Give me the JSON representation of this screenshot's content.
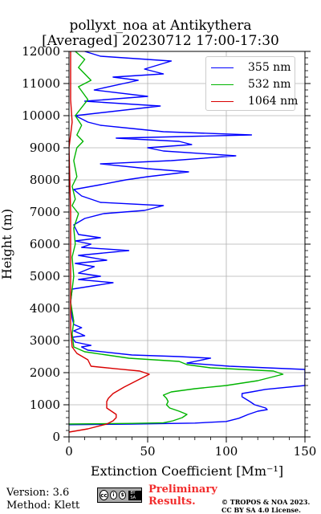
{
  "chart_data": {
    "type": "line",
    "title": "pollyxt_noa at Antikythera",
    "subtitle": "[Averaged] 20230712 17:00-17:30",
    "xlabel": "Extinction Coefficient [Mm⁻¹]",
    "ylabel": "Height (m)",
    "xlim": [
      0,
      150
    ],
    "ylim": [
      0,
      12000
    ],
    "xticks": [
      0,
      50,
      100,
      150
    ],
    "yticks": [
      0,
      1000,
      2000,
      3000,
      4000,
      5000,
      6000,
      7000,
      8000,
      9000,
      10000,
      11000,
      12000
    ],
    "grid": true,
    "legend_position": "top-right",
    "series": [
      {
        "name": "355 nm",
        "color": "#0000ff",
        "points": [
          [
            0,
            380
          ],
          [
            40,
            400
          ],
          [
            80,
            430
          ],
          [
            100,
            480
          ],
          [
            108,
            580
          ],
          [
            114,
            700
          ],
          [
            120,
            800
          ],
          [
            126,
            850
          ],
          [
            125,
            900
          ],
          [
            118,
            1000
          ],
          [
            115,
            1100
          ],
          [
            110,
            1250
          ],
          [
            110,
            1350
          ],
          [
            116,
            1400
          ],
          [
            125,
            1480
          ],
          [
            150,
            1600
          ],
          [
            150,
            2100
          ],
          [
            102,
            2200
          ],
          [
            75,
            2300
          ],
          [
            80,
            2350
          ],
          [
            90,
            2450
          ],
          [
            70,
            2500
          ],
          [
            40,
            2550
          ],
          [
            12,
            2700
          ],
          [
            8,
            2800
          ],
          [
            14,
            2850
          ],
          [
            4,
            2950
          ],
          [
            2,
            3100
          ],
          [
            10,
            3150
          ],
          [
            3,
            3300
          ],
          [
            8,
            3400
          ],
          [
            3,
            3500
          ],
          [
            2,
            3700
          ],
          [
            1,
            4200
          ],
          [
            2,
            4600
          ],
          [
            15,
            4700
          ],
          [
            28,
            4800
          ],
          [
            6,
            4900
          ],
          [
            20,
            5000
          ],
          [
            6,
            5100
          ],
          [
            16,
            5300
          ],
          [
            4,
            5400
          ],
          [
            24,
            5500
          ],
          [
            6,
            5650
          ],
          [
            38,
            5800
          ],
          [
            8,
            5900
          ],
          [
            14,
            6000
          ],
          [
            4,
            6100
          ],
          [
            20,
            6200
          ],
          [
            6,
            6300
          ],
          [
            3,
            6600
          ],
          [
            10,
            6800
          ],
          [
            22,
            6950
          ],
          [
            48,
            7050
          ],
          [
            60,
            7200
          ],
          [
            20,
            7300
          ],
          [
            8,
            7500
          ],
          [
            3,
            7700
          ],
          [
            20,
            7850
          ],
          [
            36,
            8000
          ],
          [
            50,
            8100
          ],
          [
            76,
            8250
          ],
          [
            50,
            8350
          ],
          [
            20,
            8500
          ],
          [
            65,
            8600
          ],
          [
            106,
            8750
          ],
          [
            60,
            8900
          ],
          [
            50,
            9000
          ],
          [
            78,
            9100
          ],
          [
            70,
            9200
          ],
          [
            30,
            9300
          ],
          [
            116,
            9400
          ],
          [
            60,
            9500
          ],
          [
            40,
            9600
          ],
          [
            20,
            9700
          ],
          [
            12,
            9800
          ],
          [
            4,
            10000
          ],
          [
            58,
            10300
          ],
          [
            10,
            10450
          ],
          [
            50,
            10600
          ],
          [
            16,
            10800
          ],
          [
            44,
            11100
          ],
          [
            28,
            11200
          ],
          [
            60,
            11300
          ],
          [
            48,
            11450
          ],
          [
            65,
            11700
          ],
          [
            20,
            11850
          ],
          [
            10,
            12000
          ]
        ]
      },
      {
        "name": "532 nm",
        "color": "#00b400",
        "points": [
          [
            0,
            400
          ],
          [
            40,
            420
          ],
          [
            60,
            440
          ],
          [
            66,
            500
          ],
          [
            72,
            600
          ],
          [
            75,
            700
          ],
          [
            70,
            800
          ],
          [
            64,
            900
          ],
          [
            62,
            1000
          ],
          [
            63,
            1100
          ],
          [
            62,
            1200
          ],
          [
            60,
            1300
          ],
          [
            65,
            1400
          ],
          [
            80,
            1500
          ],
          [
            100,
            1600
          ],
          [
            120,
            1750
          ],
          [
            136,
            1950
          ],
          [
            130,
            2050
          ],
          [
            90,
            2150
          ],
          [
            75,
            2250
          ],
          [
            70,
            2350
          ],
          [
            38,
            2450
          ],
          [
            24,
            2550
          ],
          [
            10,
            2650
          ],
          [
            3,
            2800
          ],
          [
            2,
            3200
          ],
          [
            3,
            3600
          ],
          [
            1,
            4200
          ],
          [
            3,
            5000
          ],
          [
            2,
            5600
          ],
          [
            4,
            6000
          ],
          [
            3,
            6500
          ],
          [
            6,
            6950
          ],
          [
            2,
            7200
          ],
          [
            4,
            7400
          ],
          [
            2,
            7800
          ],
          [
            5,
            8100
          ],
          [
            3,
            8600
          ],
          [
            5,
            9000
          ],
          [
            9,
            9200
          ],
          [
            5,
            9400
          ],
          [
            8,
            9700
          ],
          [
            4,
            10000
          ],
          [
            12,
            10500
          ],
          [
            6,
            10900
          ],
          [
            14,
            11100
          ],
          [
            6,
            11500
          ],
          [
            10,
            11750
          ],
          [
            4,
            12000
          ]
        ]
      },
      {
        "name": "1064 nm",
        "color": "#d90000",
        "points": [
          [
            0,
            150
          ],
          [
            12,
            250
          ],
          [
            24,
            400
          ],
          [
            28,
            500
          ],
          [
            30,
            600
          ],
          [
            30,
            700
          ],
          [
            27,
            800
          ],
          [
            24,
            900
          ],
          [
            24,
            1000
          ],
          [
            24,
            1100
          ],
          [
            25,
            1200
          ],
          [
            28,
            1350
          ],
          [
            35,
            1550
          ],
          [
            45,
            1800
          ],
          [
            51,
            1950
          ],
          [
            45,
            2050
          ],
          [
            30,
            2120
          ],
          [
            14,
            2200
          ],
          [
            12,
            2400
          ],
          [
            5,
            2600
          ],
          [
            2,
            2800
          ],
          [
            1,
            3400
          ],
          [
            1,
            5000
          ],
          [
            1,
            7000
          ],
          [
            0,
            9000
          ],
          [
            2,
            9800
          ],
          [
            1,
            10500
          ],
          [
            1,
            12000
          ]
        ]
      }
    ]
  },
  "footer": {
    "version": "Version: 3.6",
    "method": "Method: Klett",
    "license_badge": [
      "cc",
      "i",
      "$",
      "BY  SA"
    ],
    "preliminary_line1": "Preliminary",
    "preliminary_line2": "Results.",
    "copyright_line1": "© TROPOS & NOA 2023.",
    "copyright_line2": "CC BY SA 4.0 License."
  },
  "colors": {
    "preliminary": "#f22b2b",
    "grid": "#b0b0b0"
  }
}
